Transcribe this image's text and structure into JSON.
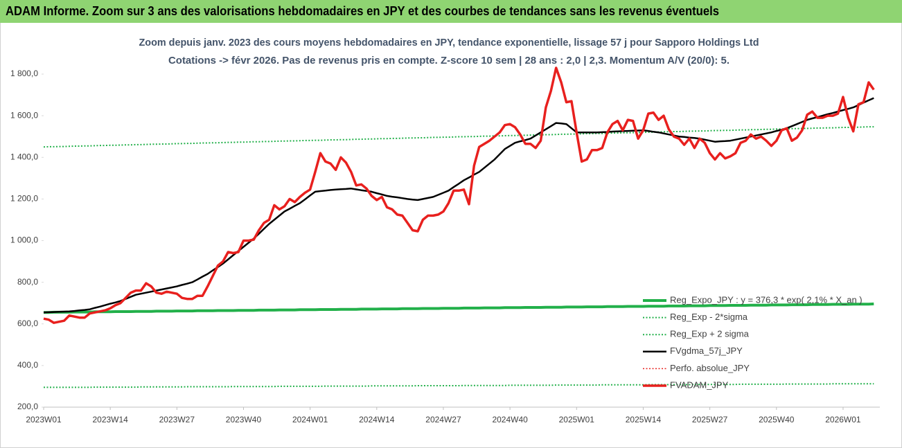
{
  "header": {
    "title": "ADAM Informe. Zoom sur 3 ans des valorisations hebdomadaires en JPY et des courbes de tendances sans les revenus éventuels"
  },
  "chart_data": {
    "type": "line",
    "title": "Zoom depuis janv. 2023 des cours moyens hebdomadaires en JPY, tendance exponentielle, lissage 57 j pour Sapporo Holdings Ltd",
    "subtitle": "Cotations -> févr 2026.  Pas de revenus pris en compte. Z-score 10 sem | 28 ans : 2,0 | 2,3. Momentum A/V (20/0): 5.",
    "categories": [
      "2023W01",
      null,
      null,
      null,
      null,
      null,
      null,
      null,
      null,
      null,
      null,
      null,
      null,
      "2023W14",
      null,
      null,
      null,
      null,
      null,
      null,
      null,
      null,
      null,
      null,
      null,
      null,
      "2023W27",
      null,
      null,
      null,
      null,
      null,
      null,
      null,
      null,
      null,
      null,
      null,
      null,
      "2023W40",
      null,
      null,
      null,
      null,
      null,
      null,
      null,
      null,
      null,
      null,
      null,
      null,
      "2024W01",
      null,
      null,
      null,
      null,
      null,
      null,
      null,
      null,
      null,
      null,
      null,
      null,
      "2024W14",
      null,
      null,
      null,
      null,
      null,
      null,
      null,
      null,
      null,
      null,
      null,
      null,
      "2024W27",
      null,
      null,
      null,
      null,
      null,
      null,
      null,
      null,
      null,
      null,
      null,
      null,
      "2024W40",
      null,
      null,
      null,
      null,
      null,
      null,
      null,
      null,
      null,
      null,
      null,
      null,
      "2025W01",
      null,
      null,
      null,
      null,
      null,
      null,
      null,
      null,
      null,
      null,
      null,
      null,
      "2025W14",
      null,
      null,
      null,
      null,
      null,
      null,
      null,
      null,
      null,
      null,
      null,
      null,
      "2025W27",
      null,
      null,
      null,
      null,
      null,
      null,
      null,
      null,
      null,
      null,
      null,
      null,
      "2025W40",
      null,
      null,
      null,
      null,
      null,
      null,
      null,
      null,
      null,
      null,
      null,
      null,
      "2026W01",
      null,
      null,
      null,
      null,
      null,
      null
    ],
    "ylim": [
      200,
      1800
    ],
    "yticks": [
      {
        "value": 200,
        "label": "200,0"
      },
      {
        "value": 400,
        "label": "400,0"
      },
      {
        "value": 600,
        "label": "600,0"
      },
      {
        "value": 800,
        "label": "800,0"
      },
      {
        "value": 1000,
        "label": "1 000,0"
      },
      {
        "value": 1200,
        "label": "1 200,0"
      },
      {
        "value": 1400,
        "label": "1 400,0"
      },
      {
        "value": 1600,
        "label": "1 600,0"
      },
      {
        "value": 1800,
        "label": "1 800,0"
      }
    ],
    "grid": false,
    "legend": "right",
    "series": [
      {
        "name": "Reg_Expo_JPY : y = 376,3 * exp( 2,1% * X_an )",
        "color": "#22b04a",
        "style": "solid",
        "width": 4,
        "values": [
          655,
          655,
          656,
          656,
          656,
          656,
          657,
          657,
          657,
          657,
          658,
          658,
          658,
          658,
          659,
          659,
          659,
          659,
          660,
          660,
          660,
          660,
          661,
          661,
          661,
          661,
          662,
          662,
          662,
          662,
          663,
          663,
          663,
          663,
          664,
          664,
          664,
          664,
          665,
          665,
          665,
          665,
          666,
          666,
          666,
          666,
          667,
          667,
          667,
          667,
          668,
          668,
          668,
          668,
          669,
          669,
          669,
          669,
          670,
          670,
          670,
          670,
          671,
          671,
          671,
          671,
          672,
          672,
          672,
          672,
          673,
          673,
          673,
          673,
          674,
          674,
          674,
          674,
          675,
          675,
          675,
          675,
          676,
          676,
          676,
          676,
          677,
          677,
          677,
          677,
          678,
          678,
          678,
          678,
          679,
          679,
          679,
          679,
          680,
          680,
          680,
          680,
          681,
          681,
          681,
          681,
          682,
          682,
          682,
          682,
          683,
          683,
          683,
          683,
          684,
          684,
          684,
          684,
          685,
          685,
          685,
          685,
          686,
          686,
          686,
          686,
          687,
          687,
          687,
          687,
          688,
          688,
          688,
          688,
          689,
          689,
          689,
          689,
          690,
          690,
          690,
          690,
          691,
          691,
          691,
          691,
          692,
          692,
          692,
          692,
          693,
          693,
          693,
          693,
          694,
          694,
          694,
          694,
          695,
          695,
          695,
          695,
          696
        ]
      },
      {
        "name": "Reg_Exp - 2*sigma",
        "color": "#22b04a",
        "style": "dotted",
        "width": 2,
        "values": [
          295,
          295,
          295,
          295,
          295,
          295,
          295,
          295,
          295,
          295,
          296,
          296,
          296,
          296,
          296,
          296,
          296,
          296,
          296,
          297,
          297,
          297,
          297,
          297,
          297,
          297,
          297,
          297,
          298,
          298,
          298,
          298,
          298,
          298,
          298,
          298,
          298,
          299,
          299,
          299,
          299,
          299,
          299,
          299,
          299,
          299,
          300,
          300,
          300,
          300,
          300,
          300,
          300,
          300,
          300,
          301,
          301,
          301,
          301,
          301,
          301,
          301,
          301,
          301,
          302,
          302,
          302,
          302,
          302,
          302,
          302,
          302,
          302,
          303,
          303,
          303,
          303,
          303,
          303,
          303,
          303,
          303,
          304,
          304,
          304,
          304,
          304,
          304,
          304,
          304,
          304,
          305,
          305,
          305,
          305,
          305,
          305,
          305,
          305,
          305,
          306,
          306,
          306,
          306,
          306,
          306,
          306,
          306,
          306,
          307,
          307,
          307,
          307,
          307,
          307,
          307,
          307,
          307,
          308,
          308,
          308,
          308,
          308,
          308,
          308,
          308,
          308,
          309,
          309,
          309,
          309,
          309,
          309,
          309,
          309,
          309,
          310,
          310,
          310,
          310,
          310,
          310,
          310,
          310,
          310,
          311,
          311,
          311,
          311,
          311,
          311,
          311,
          311,
          311,
          312,
          312,
          312,
          312,
          312,
          312,
          312,
          312,
          312
        ]
      },
      {
        "name": "Reg_Exp + 2 sigma",
        "color": "#22b04a",
        "style": "dotted",
        "width": 2,
        "values": [
          1450,
          1451,
          1451,
          1452,
          1452,
          1453,
          1454,
          1454,
          1455,
          1455,
          1456,
          1457,
          1457,
          1458,
          1458,
          1459,
          1460,
          1460,
          1461,
          1461,
          1462,
          1463,
          1463,
          1464,
          1464,
          1465,
          1466,
          1466,
          1467,
          1467,
          1468,
          1469,
          1469,
          1470,
          1470,
          1471,
          1472,
          1472,
          1473,
          1473,
          1474,
          1475,
          1475,
          1476,
          1476,
          1477,
          1478,
          1478,
          1479,
          1479,
          1480,
          1481,
          1481,
          1482,
          1482,
          1483,
          1484,
          1484,
          1485,
          1485,
          1486,
          1487,
          1487,
          1488,
          1488,
          1489,
          1490,
          1490,
          1491,
          1491,
          1492,
          1493,
          1493,
          1494,
          1494,
          1495,
          1496,
          1496,
          1497,
          1497,
          1498,
          1499,
          1499,
          1500,
          1500,
          1501,
          1502,
          1502,
          1503,
          1503,
          1504,
          1505,
          1505,
          1506,
          1506,
          1507,
          1508,
          1508,
          1509,
          1509,
          1510,
          1511,
          1511,
          1512,
          1512,
          1513,
          1514,
          1514,
          1515,
          1515,
          1516,
          1517,
          1517,
          1518,
          1518,
          1519,
          1520,
          1520,
          1521,
          1521,
          1522,
          1523,
          1523,
          1524,
          1524,
          1525,
          1526,
          1526,
          1527,
          1527,
          1528,
          1529,
          1529,
          1530,
          1530,
          1531,
          1532,
          1532,
          1533,
          1533,
          1534,
          1535,
          1535,
          1536,
          1536,
          1537,
          1538,
          1538,
          1539,
          1539,
          1540,
          1541,
          1541,
          1542,
          1542,
          1543,
          1544,
          1544,
          1545,
          1545,
          1546,
          1547,
          1547
        ]
      },
      {
        "name": "FVgdma_57j_JPY",
        "color": "#000000",
        "style": "solid",
        "width": 2.5,
        "values": [
          655,
          656,
          657,
          658,
          659,
          660,
          662,
          665,
          667,
          670,
          677,
          683,
          690,
          697,
          703,
          710,
          720,
          730,
          740,
          745,
          750,
          755,
          760,
          765,
          770,
          775,
          780,
          787,
          793,
          800,
          813,
          827,
          840,
          857,
          873,
          890,
          910,
          930,
          950,
          970,
          990,
          1010,
          1033,
          1057,
          1080,
          1100,
          1120,
          1140,
          1153,
          1167,
          1180,
          1198,
          1217,
          1235,
          1238,
          1240,
          1243,
          1245,
          1247,
          1248,
          1250,
          1246,
          1242,
          1239,
          1235,
          1228,
          1222,
          1215,
          1211,
          1208,
          1204,
          1200,
          1197,
          1195,
          1200,
          1205,
          1210,
          1220,
          1230,
          1240,
          1257,
          1273,
          1290,
          1303,
          1317,
          1330,
          1350,
          1370,
          1390,
          1415,
          1440,
          1455,
          1470,
          1477,
          1483,
          1490,
          1505,
          1520,
          1535,
          1550,
          1565,
          1563,
          1560,
          1540,
          1520,
          1520,
          1520,
          1520,
          1520,
          1521,
          1522,
          1524,
          1525,
          1526,
          1527,
          1528,
          1529,
          1530,
          1527,
          1523,
          1520,
          1515,
          1510,
          1505,
          1500,
          1498,
          1495,
          1493,
          1490,
          1485,
          1480,
          1475,
          1477,
          1478,
          1480,
          1485,
          1490,
          1495,
          1500,
          1505,
          1510,
          1515,
          1520,
          1527,
          1533,
          1540,
          1550,
          1560,
          1570,
          1580,
          1587,
          1593,
          1600,
          1607,
          1613,
          1620,
          1627,
          1633,
          1640,
          1651,
          1663,
          1674,
          1685
        ]
      },
      {
        "name": "Perfo. absolue_JPY",
        "color": "#e8201e",
        "style": "dotted",
        "width": 1.5
      },
      {
        "name": "FVADAM_JPY",
        "color": "#e8201e",
        "style": "solid",
        "width": 3.5,
        "values": [
          625,
          620,
          605,
          610,
          615,
          640,
          635,
          630,
          630,
          650,
          655,
          660,
          665,
          675,
          690,
          700,
          725,
          750,
          760,
          760,
          795,
          780,
          750,
          745,
          755,
          750,
          745,
          725,
          720,
          720,
          735,
          735,
          780,
          830,
          880,
          900,
          945,
          940,
          945,
          1000,
          1000,
          1005,
          1050,
          1085,
          1100,
          1170,
          1150,
          1165,
          1200,
          1185,
          1210,
          1230,
          1245,
          1330,
          1420,
          1380,
          1370,
          1340,
          1400,
          1375,
          1330,
          1265,
          1270,
          1250,
          1215,
          1195,
          1210,
          1160,
          1150,
          1125,
          1120,
          1085,
          1050,
          1045,
          1100,
          1120,
          1120,
          1125,
          1140,
          1180,
          1240,
          1240,
          1245,
          1175,
          1360,
          1450,
          1465,
          1480,
          1500,
          1520,
          1555,
          1560,
          1545,
          1510,
          1465,
          1465,
          1445,
          1480,
          1640,
          1720,
          1830,
          1760,
          1665,
          1670,
          1520,
          1380,
          1390,
          1435,
          1435,
          1445,
          1520,
          1560,
          1575,
          1530,
          1580,
          1575,
          1490,
          1530,
          1610,
          1615,
          1580,
          1600,
          1535,
          1500,
          1490,
          1460,
          1490,
          1445,
          1490,
          1470,
          1420,
          1390,
          1420,
          1395,
          1405,
          1420,
          1470,
          1480,
          1510,
          1490,
          1500,
          1480,
          1455,
          1480,
          1530,
          1540,
          1480,
          1495,
          1530,
          1605,
          1620,
          1590,
          1590,
          1600,
          1600,
          1610,
          1690,
          1590,
          1525,
          1655,
          1665,
          1760,
          1725
        ]
      }
    ]
  }
}
